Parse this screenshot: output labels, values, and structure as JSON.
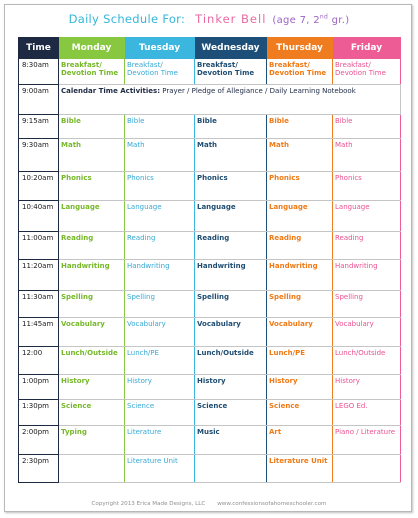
{
  "title": {
    "label": "Daily Schedule For:",
    "name": "Tinker Bell",
    "age_pre": "(age 7, 2",
    "age_sup": "nd",
    "age_post": " gr.)"
  },
  "colors": {
    "time_header": "#1e2a44",
    "monday": "#88c840",
    "tuesday": "#3bb7df",
    "wednesday": "#1e4f78",
    "thursday": "#ef7c1e",
    "friday": "#ee5c95"
  },
  "headers": [
    "Time",
    "Monday",
    "Tuesday",
    "Wednesday",
    "Thursday",
    "Friday"
  ],
  "rows": [
    {
      "time": "8:30am",
      "cells": [
        "Breakfast/ Devotion Time",
        "Breakfast/ Devotion Time",
        "Breakfast/ Devotion Time",
        "Breakfast/ Devotion Time",
        "Breakfast/ Devotion Time"
      ]
    },
    {
      "time": "9:00am",
      "wide_label": "Calendar Time Activities:",
      "wide_rest": " Prayer / Pledge of Allegiance / Daily Learning Notebook"
    },
    {
      "time": "9:15am",
      "cells": [
        "Bible",
        "Bible",
        "Bible",
        "Bible",
        "Bible"
      ]
    },
    {
      "time": "9:30am",
      "cells": [
        "Math",
        "Math",
        "Math",
        "Math",
        "Math"
      ]
    },
    {
      "time": "10:20am",
      "cells": [
        "Phonics",
        "Phonics",
        "Phonics",
        "Phonics",
        "Phonics"
      ]
    },
    {
      "time": "10:40am",
      "cells": [
        "Language",
        "Language",
        "Language",
        "Language",
        "Language"
      ]
    },
    {
      "time": "11:00am",
      "cells": [
        "Reading",
        "Reading",
        "Reading",
        "Reading",
        "Reading"
      ]
    },
    {
      "time": "11:20am",
      "cells": [
        "Handwriting",
        "Handwriting",
        "Handwriting",
        "Handwriting",
        "Handwriting"
      ]
    },
    {
      "time": "11:30am",
      "cells": [
        "Spelling",
        "Spelling",
        "Spelling",
        "Spelling",
        "Spelling"
      ]
    },
    {
      "time": "11:45am",
      "cells": [
        "Vocabulary",
        "Vocabulary",
        "Vocabulary",
        "Vocabulary",
        "Vocabulary"
      ]
    },
    {
      "time": "12:00",
      "cells": [
        "Lunch/Outside",
        "Lunch/PE",
        "Lunch/Outside",
        "Lunch/PE",
        "Lunch/Outside"
      ]
    },
    {
      "time": "1:00pm",
      "cells": [
        "History",
        "History",
        "History",
        "History",
        "History"
      ]
    },
    {
      "time": "1:30pm",
      "cells": [
        "Science",
        "Science",
        "Science",
        "Science",
        "LEGO Ed."
      ]
    },
    {
      "time": "2:00pm",
      "cells": [
        "Typing",
        "Literature",
        "Music",
        "Art",
        "Piano / Literature"
      ]
    },
    {
      "time": "2:30pm",
      "cells": [
        "",
        "Literature Unit",
        "",
        "Literature Unit",
        ""
      ]
    }
  ],
  "footer": {
    "copyright": "Copyright 2013 Erica Made Designs, LLC",
    "website": "www.confessionsofahomeschooler.com"
  }
}
